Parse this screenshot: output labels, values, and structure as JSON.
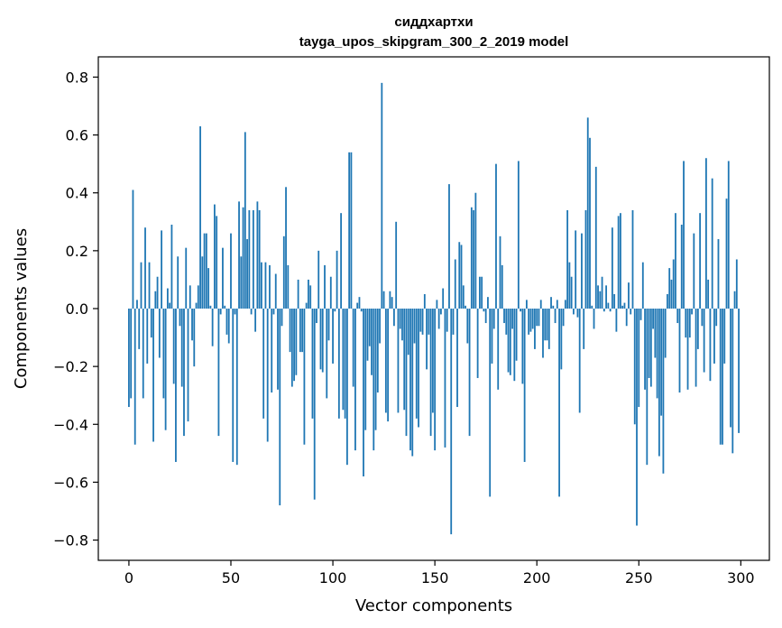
{
  "chart_data": {
    "type": "bar",
    "title": [
      "сиддхартхи",
      "tayga_upos_skipgram_300_2_2019 model"
    ],
    "xlabel": "Vector components",
    "ylabel": "Components values",
    "xlim": [
      -15,
      314
    ],
    "ylim": [
      -0.87,
      0.87
    ],
    "xticks": [
      0,
      50,
      100,
      150,
      200,
      250,
      300
    ],
    "yticks": [
      -0.8,
      -0.6,
      -0.4,
      -0.2,
      0.0,
      0.2,
      0.4,
      0.6,
      0.8
    ],
    "ytick_labels": [
      "−0.8",
      "−0.6",
      "−0.4",
      "−0.2",
      "0.0",
      "0.2",
      "0.4",
      "0.6",
      "0.8"
    ],
    "grid": false,
    "bar_color": "#1f77b4",
    "values": [
      -0.34,
      -0.31,
      0.41,
      -0.47,
      0.03,
      -0.14,
      0.16,
      -0.31,
      0.28,
      -0.19,
      0.16,
      -0.1,
      -0.46,
      0.06,
      0.11,
      -0.17,
      0.27,
      -0.31,
      -0.42,
      0.07,
      0.02,
      0.29,
      -0.26,
      -0.53,
      0.18,
      -0.06,
      -0.27,
      -0.44,
      0.21,
      -0.39,
      0.08,
      -0.11,
      -0.2,
      0.02,
      0.08,
      0.63,
      0.18,
      0.26,
      0.26,
      0.14,
      0.01,
      -0.13,
      0.36,
      0.32,
      -0.44,
      -0.02,
      0.21,
      0.01,
      -0.09,
      -0.12,
      0.26,
      -0.53,
      -0.02,
      -0.54,
      0.37,
      0.18,
      0.35,
      0.61,
      0.24,
      0.34,
      -0.02,
      0.34,
      -0.08,
      0.37,
      0.34,
      0.16,
      -0.38,
      0.16,
      -0.46,
      0.15,
      -0.29,
      -0.02,
      0.12,
      -0.28,
      -0.68,
      -0.06,
      0.25,
      0.42,
      0.15,
      -0.15,
      -0.27,
      -0.25,
      -0.23,
      0.1,
      -0.15,
      -0.15,
      -0.47,
      0.02,
      0.1,
      0.08,
      -0.38,
      -0.66,
      -0.05,
      0.2,
      -0.21,
      -0.22,
      0.15,
      -0.31,
      -0.11,
      0.11,
      -0.19,
      -0.01,
      0.2,
      -0.38,
      0.33,
      -0.35,
      -0.38,
      -0.54,
      0.54,
      0.54,
      -0.27,
      -0.49,
      0.02,
      0.04,
      -0.01,
      -0.58,
      -0.42,
      -0.18,
      -0.13,
      -0.23,
      -0.49,
      -0.42,
      -0.29,
      -0.12,
      0.78,
      0.06,
      -0.36,
      -0.39,
      0.06,
      0.04,
      -0.06,
      0.3,
      -0.36,
      -0.07,
      -0.11,
      -0.35,
      -0.44,
      -0.16,
      -0.49,
      -0.51,
      -0.12,
      -0.38,
      -0.41,
      -0.08,
      -0.09,
      0.05,
      -0.21,
      -0.09,
      -0.44,
      -0.36,
      -0.49,
      0.03,
      -0.07,
      -0.02,
      0.07,
      -0.48,
      -0.08,
      0.43,
      -0.78,
      -0.09,
      0.17,
      -0.34,
      0.23,
      0.22,
      0.08,
      0.01,
      -0.12,
      -0.44,
      0.35,
      0.34,
      0.4,
      -0.24,
      0.11,
      0.11,
      -0.01,
      -0.05,
      0.04,
      -0.65,
      -0.19,
      -0.07,
      0.5,
      -0.28,
      0.25,
      0.15,
      -0.05,
      -0.09,
      -0.22,
      -0.23,
      -0.07,
      -0.25,
      -0.18,
      0.51,
      -0.01,
      -0.26,
      -0.53,
      0.03,
      -0.09,
      -0.08,
      -0.07,
      -0.14,
      -0.06,
      -0.06,
      0.03,
      -0.17,
      -0.11,
      -0.11,
      -0.14,
      0.04,
      0.01,
      -0.05,
      0.03,
      -0.65,
      -0.21,
      -0.06,
      0.03,
      0.34,
      0.16,
      0.11,
      -0.02,
      0.27,
      -0.03,
      -0.36,
      0.26,
      -0.14,
      0.34,
      0.66,
      0.59,
      0.01,
      -0.07,
      0.49,
      0.08,
      0.06,
      0.11,
      -0.01,
      0.08,
      0.02,
      -0.01,
      0.28,
      0.05,
      -0.08,
      0.32,
      0.33,
      0.01,
      0.02,
      -0.06,
      0.09,
      -0.02,
      0.34,
      -0.4,
      -0.75,
      -0.34,
      -0.04,
      0.16,
      -0.28,
      -0.54,
      -0.24,
      -0.27,
      -0.07,
      -0.17,
      -0.31,
      -0.51,
      -0.37,
      -0.57,
      -0.17,
      0.05,
      0.14,
      0.1,
      0.17,
      0.33,
      -0.05,
      -0.29,
      0.29,
      0.51,
      -0.1,
      -0.28,
      -0.1,
      -0.02,
      0.26,
      -0.27,
      -0.14,
      0.33,
      -0.06,
      -0.22,
      0.52,
      0.1,
      -0.25,
      0.45,
      -0.19,
      -0.06,
      0.24,
      -0.47,
      -0.47,
      -0.19,
      0.38,
      0.51,
      -0.41,
      -0.5,
      0.06,
      0.17,
      -0.43
    ]
  }
}
